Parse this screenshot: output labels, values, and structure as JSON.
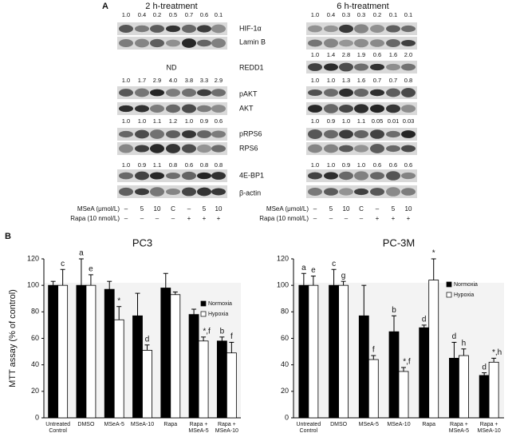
{
  "panel_a": {
    "label": "A",
    "columns": [
      {
        "title": "2 h-treatment",
        "note": "ND",
        "quantifications": [
          [
            "1.0",
            "0.4",
            "0.2",
            "0.5",
            "0.7",
            "0.6",
            "0.1"
          ],
          [
            "1.0",
            "1.7",
            "2.9",
            "4.0",
            "3.8",
            "3.3",
            "2.9"
          ],
          [
            "1.0",
            "1.0",
            "1.1",
            "1.2",
            "1.0",
            "0.9",
            "0.6"
          ],
          [
            "1.0",
            "0.9",
            "1.1",
            "0.8",
            "0.6",
            "0.8",
            "0.8"
          ]
        ]
      },
      {
        "title": "6 h-treatment",
        "quantifications": [
          [
            "1.0",
            "0.4",
            "0.3",
            "0.3",
            "0.2",
            "0.1",
            "0.1"
          ],
          [
            "1.0",
            "1.4",
            "2.8",
            "1.9",
            "0.6",
            "1.6",
            "2.0"
          ],
          [
            "1.0",
            "1.0",
            "1.3",
            "1.6",
            "0.7",
            "0.7",
            "0.8"
          ],
          [
            "1.0",
            "0.9",
            "1.0",
            "1.1",
            "0.05",
            "0.01",
            "0.03"
          ],
          [
            "1.0",
            "1.0",
            "0.9",
            "1.0",
            "0.6",
            "0.6",
            "0.6"
          ]
        ]
      }
    ],
    "proteins": [
      "HIF-1α",
      "Lamin B",
      "REDD1",
      "pAKT",
      "AKT",
      "pRPS6",
      "RPS6",
      "4E-BP1",
      "β-actin"
    ],
    "treatments": [
      {
        "name": "MSeA (μmol/L)",
        "levels": [
          "–",
          "5",
          "10",
          "C",
          "–",
          "5",
          "10"
        ]
      },
      {
        "name": "Rapa (10 nmol/L)",
        "levels": [
          "–",
          "–",
          "–",
          "–",
          "+",
          "+",
          "+"
        ]
      }
    ]
  },
  "panel_b_label": "B",
  "chart_data": [
    {
      "type": "bar",
      "title": "PC3",
      "y_label": "MTT assay (% of control)",
      "categories": [
        "Untreated Control",
        "DMSO",
        "MSeA-5",
        "MSeA-10",
        "Rapa",
        "Rapa + MSeA-5",
        "Rapa + MSeA-10"
      ],
      "series": [
        {
          "name": "Normoxia",
          "color": "#000000",
          "values": [
            100,
            100,
            97,
            77,
            98,
            78,
            58
          ],
          "errors": [
            3,
            20,
            6,
            17,
            11,
            4,
            3
          ],
          "annotations": [
            null,
            "a",
            null,
            null,
            null,
            null,
            "b"
          ]
        },
        {
          "name": "Hypoxia",
          "color": "#ffffff",
          "values": [
            100,
            100,
            74,
            51,
            93,
            58,
            49
          ],
          "errors": [
            12,
            8,
            10,
            4,
            2,
            3,
            8
          ],
          "annotations": [
            "c",
            "e",
            "*",
            "d",
            null,
            "*,f",
            "f"
          ]
        }
      ],
      "ylim": [
        0,
        120
      ],
      "yticks": [
        0,
        20,
        40,
        60,
        80,
        100,
        120
      ]
    },
    {
      "type": "bar",
      "title": "PC-3M",
      "categories": [
        "Untreated Control",
        "DMSO",
        "MSeA-5",
        "MSeA-10",
        "Rapa",
        "Rapa + MSeA-5",
        "Rapa + MSeA-10"
      ],
      "series": [
        {
          "name": "Normoxia",
          "color": "#000000",
          "values": [
            100,
            100,
            77,
            65,
            68,
            45,
            32
          ],
          "errors": [
            9,
            12,
            23,
            12,
            2,
            12,
            2
          ],
          "annotations": [
            "a",
            "c",
            null,
            "b",
            "d",
            "d",
            "d"
          ]
        },
        {
          "name": "Hypoxia",
          "color": "#ffffff",
          "values": [
            100,
            100,
            44,
            35,
            104,
            47,
            42
          ],
          "errors": [
            7,
            3,
            3,
            3,
            16,
            5,
            3
          ],
          "annotations": [
            "e",
            "g",
            "f",
            "*,f",
            "*",
            "h",
            "*,h"
          ]
        }
      ],
      "ylim": [
        0,
        120
      ],
      "yticks": [
        0,
        20,
        40,
        60,
        80,
        100,
        120
      ]
    }
  ]
}
